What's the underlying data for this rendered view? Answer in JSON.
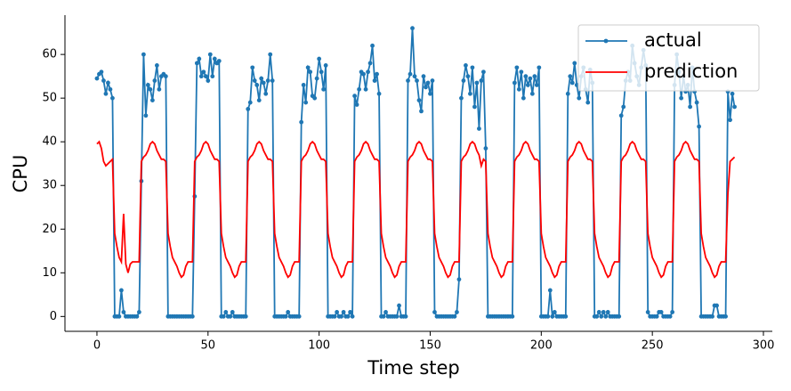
{
  "chart_data": {
    "type": "line",
    "xlabel": "Time step",
    "ylabel": "CPU",
    "x": [
      0,
      1,
      2,
      3,
      4,
      5,
      6,
      7,
      8,
      9,
      10,
      11,
      12,
      13,
      14,
      15,
      16,
      17,
      18,
      19,
      20,
      21,
      22,
      23,
      24,
      25,
      26,
      27,
      28,
      29,
      30,
      31,
      32,
      33,
      34,
      35,
      36,
      37,
      38,
      39,
      40,
      41,
      42,
      43,
      44,
      45,
      46,
      47,
      48,
      49,
      50,
      51,
      52,
      53,
      54,
      55,
      56,
      57,
      58,
      59,
      60,
      61,
      62,
      63,
      64,
      65,
      66,
      67,
      68,
      69,
      70,
      71,
      72,
      73,
      74,
      75,
      76,
      77,
      78,
      79,
      80,
      81,
      82,
      83,
      84,
      85,
      86,
      87,
      88,
      89,
      90,
      91,
      92,
      93,
      94,
      95,
      96,
      97,
      98,
      99,
      100,
      101,
      102,
      103,
      104,
      105,
      106,
      107,
      108,
      109,
      110,
      111,
      112,
      113,
      114,
      115,
      116,
      117,
      118,
      119,
      120,
      121,
      122,
      123,
      124,
      125,
      126,
      127,
      128,
      129,
      130,
      131,
      132,
      133,
      134,
      135,
      136,
      137,
      138,
      139,
      140,
      141,
      142,
      143,
      144,
      145,
      146,
      147,
      148,
      149,
      150,
      151,
      152,
      153,
      154,
      155,
      156,
      157,
      158,
      159,
      160,
      161,
      162,
      163,
      164,
      165,
      166,
      167,
      168,
      169,
      170,
      171,
      172,
      173,
      174,
      175,
      176,
      177,
      178,
      179,
      180,
      181,
      182,
      183,
      184,
      185,
      186,
      187,
      188,
      189,
      190,
      191,
      192,
      193,
      194,
      195,
      196,
      197,
      198,
      199,
      200,
      201,
      202,
      203,
      204,
      205,
      206,
      207,
      208,
      209,
      210,
      211,
      212,
      213,
      214,
      215,
      216,
      217,
      218,
      219,
      220,
      221,
      222,
      223,
      224,
      225,
      226,
      227,
      228,
      229,
      230,
      231,
      232,
      233,
      234,
      235,
      236,
      237,
      238,
      239,
      240,
      241,
      242,
      243,
      244,
      245,
      246,
      247,
      248,
      249,
      250,
      251,
      252,
      253,
      254,
      255,
      256,
      257,
      258,
      259,
      260,
      261,
      262,
      263,
      264,
      265,
      266,
      267,
      268,
      269,
      270,
      271,
      272,
      273,
      274,
      275,
      276,
      277,
      278,
      279,
      280,
      281,
      282,
      283,
      284,
      285,
      286,
      287
    ],
    "series": [
      {
        "name": "actual",
        "color": "#1f77b4",
        "marker": true,
        "values": [
          54.5,
          55.5,
          56,
          54,
          51,
          53.5,
          52,
          50,
          0,
          0,
          0,
          6,
          1,
          0,
          0,
          0,
          0,
          0,
          0,
          1,
          31,
          60,
          46,
          53,
          52,
          49.5,
          54,
          57.5,
          52,
          55,
          55.5,
          55,
          0,
          0,
          0,
          0,
          0,
          0,
          0,
          0,
          0,
          0,
          0,
          0,
          27.5,
          58,
          59,
          55,
          56,
          55,
          54,
          60,
          55,
          59,
          58,
          58.5,
          0,
          0,
          1,
          0,
          0,
          1,
          0,
          0,
          0,
          0,
          0,
          0,
          47.5,
          49,
          57,
          54,
          53,
          49.5,
          54.5,
          53.5,
          51,
          54,
          60,
          54,
          0,
          0,
          0,
          0,
          0,
          0,
          1,
          0,
          0,
          0,
          0,
          0,
          44.5,
          53,
          49,
          57,
          56,
          50.5,
          50,
          54.5,
          59,
          56,
          52,
          57.5,
          0,
          0,
          0,
          0,
          1,
          0,
          0,
          1,
          0,
          0,
          1,
          0,
          50.5,
          48.5,
          52,
          56,
          55.5,
          52,
          56,
          58,
          62,
          54,
          55.5,
          51,
          0,
          0,
          1,
          0,
          0,
          0,
          0,
          0,
          2.5,
          0,
          0,
          0,
          54,
          55.5,
          66,
          55,
          54,
          49.5,
          47,
          55,
          52.5,
          53.5,
          51,
          54,
          1,
          0,
          0,
          0,
          0,
          0,
          0,
          0,
          0,
          0,
          1,
          8.5,
          50,
          54,
          57.5,
          55,
          51,
          57,
          48,
          53.5,
          43,
          54,
          56,
          38.5,
          0,
          0,
          0,
          0,
          0,
          0,
          0,
          0,
          0,
          0,
          0,
          0,
          53.5,
          57,
          52,
          56,
          50,
          55,
          53,
          54.5,
          51,
          55,
          53,
          57,
          0,
          0,
          0,
          0,
          6,
          0,
          1,
          0,
          0,
          0,
          0,
          0,
          51,
          55,
          53.5,
          58,
          53,
          50,
          55,
          57,
          52,
          49,
          56.5,
          53.5,
          0,
          0,
          1,
          0,
          1,
          0,
          1,
          0,
          0,
          0,
          0,
          0,
          46,
          48,
          54,
          56,
          54,
          62,
          58,
          55,
          53,
          57,
          61,
          57.5,
          1,
          0,
          0,
          0,
          0,
          1,
          1,
          0,
          0,
          0,
          0,
          1,
          53,
          60,
          56,
          50,
          55,
          51.5,
          53,
          48,
          57,
          51.5,
          49,
          43.5,
          0,
          0,
          0,
          0,
          0,
          0,
          2.5,
          2.5,
          0,
          0,
          0,
          0,
          51.5,
          45,
          51,
          48
        ]
      },
      {
        "name": "prediction",
        "color": "#ff0000",
        "marker": false,
        "values": [
          39.5,
          40,
          38.5,
          35.5,
          34.5,
          35,
          35.5,
          36,
          19,
          16,
          13.5,
          12.5,
          23.5,
          12,
          10,
          12,
          12.5,
          12.5,
          12.5,
          12.5,
          35.5,
          36.5,
          37,
          38,
          39.5,
          40,
          39.5,
          38,
          37,
          36,
          36,
          35.5,
          19,
          16,
          13.5,
          12.5,
          11.5,
          10,
          9,
          9.5,
          11.5,
          12.5,
          12.5,
          12.5,
          35.5,
          36.5,
          37,
          38,
          39.5,
          40,
          39.5,
          38,
          37,
          36,
          36,
          35.5,
          19,
          16,
          13.5,
          12.5,
          11.5,
          10,
          9,
          9.5,
          11.5,
          12.5,
          12.5,
          12.5,
          35.5,
          36.5,
          37,
          38,
          39.5,
          40,
          39.5,
          38,
          37,
          36,
          36,
          35.5,
          19,
          16,
          13.5,
          12.5,
          11.5,
          10,
          9,
          9.5,
          11.5,
          12.5,
          12.5,
          12.5,
          35.5,
          36.5,
          37,
          38,
          39.5,
          40,
          39.5,
          38,
          37,
          36,
          36,
          35.5,
          19,
          16,
          13.5,
          12.5,
          11.5,
          10,
          9,
          9.5,
          11.5,
          12.5,
          12.5,
          12.5,
          35.5,
          36.5,
          37,
          38,
          39.5,
          40,
          39.5,
          38,
          37,
          36,
          36,
          35.5,
          19,
          16,
          13.5,
          12.5,
          11.5,
          10,
          9,
          9.5,
          11.5,
          12.5,
          12.5,
          12.5,
          35.5,
          36.5,
          37,
          38,
          39.5,
          40,
          39.5,
          38,
          37,
          36,
          36,
          35.5,
          19,
          16,
          13.5,
          12.5,
          11.5,
          10,
          9,
          9.5,
          11.5,
          12.5,
          12.5,
          12.5,
          35.5,
          36.5,
          37,
          38,
          39.5,
          40,
          39.5,
          38,
          37,
          34.5,
          36,
          35.5,
          19,
          16,
          13.5,
          12.5,
          11.5,
          10,
          9,
          9.5,
          11.5,
          12.5,
          12.5,
          12.5,
          35.5,
          36.5,
          37,
          38,
          39.5,
          40,
          39.5,
          38,
          37,
          36,
          36,
          35.5,
          19,
          16,
          13.5,
          12.5,
          11.5,
          10,
          9,
          9.5,
          11.5,
          12.5,
          12.5,
          12.5,
          35.5,
          36.5,
          37,
          38,
          39.5,
          40,
          39.5,
          38,
          37,
          36,
          36,
          35.5,
          19,
          16,
          13.5,
          12.5,
          11.5,
          10,
          9,
          9.5,
          11.5,
          12.5,
          12.5,
          12.5,
          35.5,
          36.5,
          37,
          38,
          39.5,
          40,
          39.5,
          38,
          37,
          36,
          36,
          35.5,
          19,
          16,
          13.5,
          12.5,
          11.5,
          10,
          9,
          9.5,
          11.5,
          12.5,
          12.5,
          12.5,
          35.5,
          36.5,
          37,
          38,
          39.5,
          40,
          39.5,
          38,
          37,
          36,
          36,
          35.5,
          19,
          16,
          13.5,
          12.5,
          11.5,
          10,
          9,
          9.5,
          11.5,
          12.5,
          12.5,
          12.5,
          28,
          35.5,
          36,
          36.5
        ]
      }
    ],
    "xlim": [
      -14.4,
      304
    ],
    "ylim": [
      -3.4,
      69
    ],
    "xticks": [
      0,
      50,
      100,
      150,
      200,
      250,
      300
    ],
    "yticks": [
      0,
      10,
      20,
      30,
      40,
      50,
      60
    ],
    "legend": "upper right"
  }
}
